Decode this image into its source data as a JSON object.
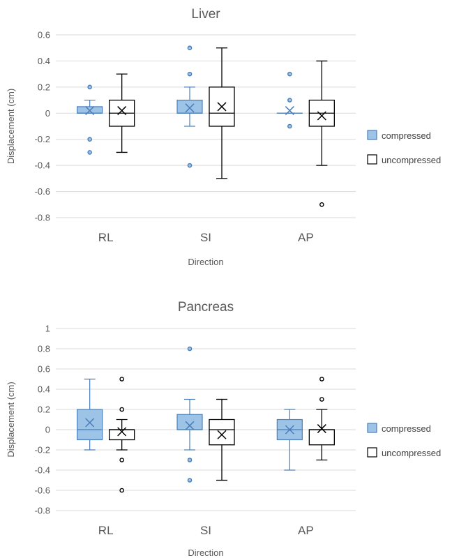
{
  "colors": {
    "compressed_fill": "#9dc3e6",
    "compressed_stroke": "#4a7ebb",
    "uncompressed_fill": "#ffffff",
    "uncompressed_stroke": "#000000",
    "grid": "#d9d9d9"
  },
  "chart_data": [
    {
      "type": "boxplot",
      "title": "Liver",
      "xlabel": "Direction",
      "ylabel": "Displacement (cm)",
      "ylim": [
        -0.8,
        0.6
      ],
      "yticks": [
        -0.8,
        -0.6,
        -0.4,
        -0.2,
        0,
        0.2,
        0.4,
        0.6
      ],
      "ytick_labels": [
        "-0.8",
        "-0.6",
        "-0.4",
        "-0.2",
        "0",
        "0.2",
        "0.4",
        "0.6"
      ],
      "categories": [
        "RL",
        "SI",
        "AP"
      ],
      "grid": true,
      "legend_position": "right",
      "series": [
        {
          "name": "compressed",
          "boxes": [
            {
              "whisker_low": 0,
              "q1": 0,
              "median": 0,
              "q3": 0.05,
              "whisker_high": 0.1,
              "mean": 0.02,
              "outliers": [
                0.2,
                -0.2,
                -0.3
              ]
            },
            {
              "whisker_low": -0.1,
              "q1": 0,
              "median": 0,
              "q3": 0.1,
              "whisker_high": 0.2,
              "mean": 0.04,
              "outliers": [
                0.5,
                0.3,
                -0.4
              ]
            },
            {
              "whisker_low": 0,
              "q1": 0,
              "median": 0,
              "q3": 0,
              "whisker_high": 0,
              "mean": 0.02,
              "outliers": [
                0.3,
                0.1,
                -0.1
              ]
            }
          ]
        },
        {
          "name": "uncompressed",
          "boxes": [
            {
              "whisker_low": -0.3,
              "q1": -0.1,
              "median": 0,
              "q3": 0.1,
              "whisker_high": 0.3,
              "mean": 0.02,
              "outliers": []
            },
            {
              "whisker_low": -0.5,
              "q1": -0.1,
              "median": 0,
              "q3": 0.2,
              "whisker_high": 0.5,
              "mean": 0.05,
              "outliers": []
            },
            {
              "whisker_low": -0.4,
              "q1": -0.1,
              "median": 0,
              "q3": 0.1,
              "whisker_high": 0.4,
              "mean": -0.02,
              "outliers": [
                -0.7
              ]
            }
          ]
        }
      ]
    },
    {
      "type": "boxplot",
      "title": "Pancreas",
      "xlabel": "Direction",
      "ylabel": "Displacement (cm)",
      "ylim": [
        -0.8,
        1
      ],
      "yticks": [
        -0.8,
        -0.6,
        -0.4,
        -0.2,
        0,
        0.2,
        0.4,
        0.6,
        0.8,
        1
      ],
      "ytick_labels": [
        "-0.8",
        "-0.6",
        "-0.4",
        "-0.2",
        "0",
        "0.2",
        "0.4",
        "0.6",
        "0.8",
        "1"
      ],
      "categories": [
        "RL",
        "SI",
        "AP"
      ],
      "grid": true,
      "legend_position": "right",
      "series": [
        {
          "name": "compressed",
          "boxes": [
            {
              "whisker_low": -0.2,
              "q1": -0.1,
              "median": 0,
              "q3": 0.2,
              "whisker_high": 0.5,
              "mean": 0.07,
              "outliers": []
            },
            {
              "whisker_low": -0.2,
              "q1": 0,
              "median": 0,
              "q3": 0.15,
              "whisker_high": 0.3,
              "mean": 0.04,
              "outliers": [
                0.8,
                -0.3,
                -0.5
              ]
            },
            {
              "whisker_low": -0.4,
              "q1": -0.1,
              "median": 0,
              "q3": 0.1,
              "whisker_high": 0.2,
              "mean": 0,
              "outliers": []
            }
          ]
        },
        {
          "name": "uncompressed",
          "boxes": [
            {
              "whisker_low": -0.2,
              "q1": -0.1,
              "median": 0,
              "q3": 0,
              "whisker_high": 0.1,
              "mean": -0.02,
              "outliers": [
                0.5,
                0.2,
                -0.3,
                -0.6
              ]
            },
            {
              "whisker_low": -0.5,
              "q1": -0.15,
              "median": 0,
              "q3": 0.1,
              "whisker_high": 0.3,
              "mean": -0.05,
              "outliers": []
            },
            {
              "whisker_low": -0.3,
              "q1": -0.15,
              "median": 0,
              "q3": 0,
              "whisker_high": 0.2,
              "mean": 0.01,
              "outliers": [
                0.5,
                0.3
              ]
            }
          ]
        }
      ]
    }
  ]
}
